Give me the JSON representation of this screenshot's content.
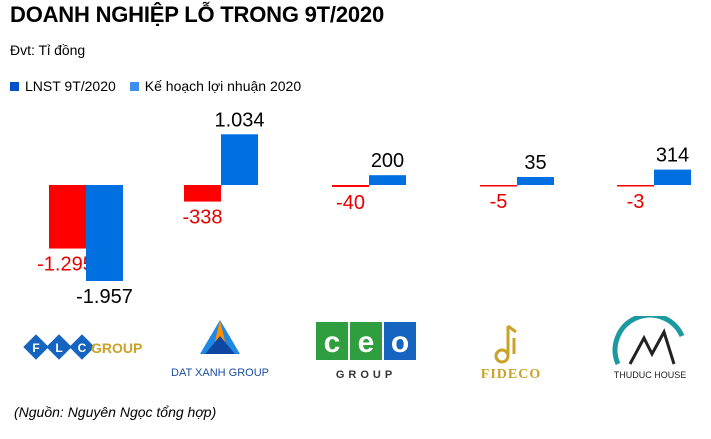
{
  "header": {
    "title": "DOANH NGHIỆP LỖ TRONG 9T/2020",
    "unit": "Đvt: Tỉ đồng"
  },
  "colors": {
    "series1": "#ff0000",
    "series2": "#0070e0",
    "negative_label": "#e60000",
    "positive_label": "#000000"
  },
  "chart_data": {
    "type": "bar",
    "categories": [
      "FLC GROUP",
      "DAT XANH GROUP",
      "CEO GROUP",
      "FIDECO",
      "THUDUC HOUSE"
    ],
    "series": [
      {
        "name": "LNST 9T/2020",
        "values": [
          -1295,
          -338,
          -40,
          -5,
          -3
        ],
        "labels": [
          "-1.295",
          "-338",
          "-40",
          "-5",
          "-3"
        ]
      },
      {
        "name": "Kế hoạch lợi nhuận 2020",
        "values": [
          -1957,
          1034,
          200,
          35,
          314
        ],
        "labels": [
          "-1.957",
          "1.034",
          "200",
          "35",
          "314"
        ]
      }
    ],
    "legend_position": "top-left",
    "grid": false
  },
  "logos": [
    {
      "icon": "flc-logo",
      "letters": [
        "F",
        "L",
        "C"
      ],
      "text": "GROUP"
    },
    {
      "icon": "dat-xanh-logo",
      "text": "DAT XANH GROUP"
    },
    {
      "icon": "ceo-logo",
      "letters": [
        "c",
        "e",
        "o"
      ],
      "text": "GROUP"
    },
    {
      "icon": "fideco-logo",
      "text": "FIDECO"
    },
    {
      "icon": "thuduc-house-logo",
      "text": "THUDUC HOUSE"
    }
  ],
  "footer": {
    "source": "(Nguồn: Nguyên Ngọc tổng hợp)"
  }
}
